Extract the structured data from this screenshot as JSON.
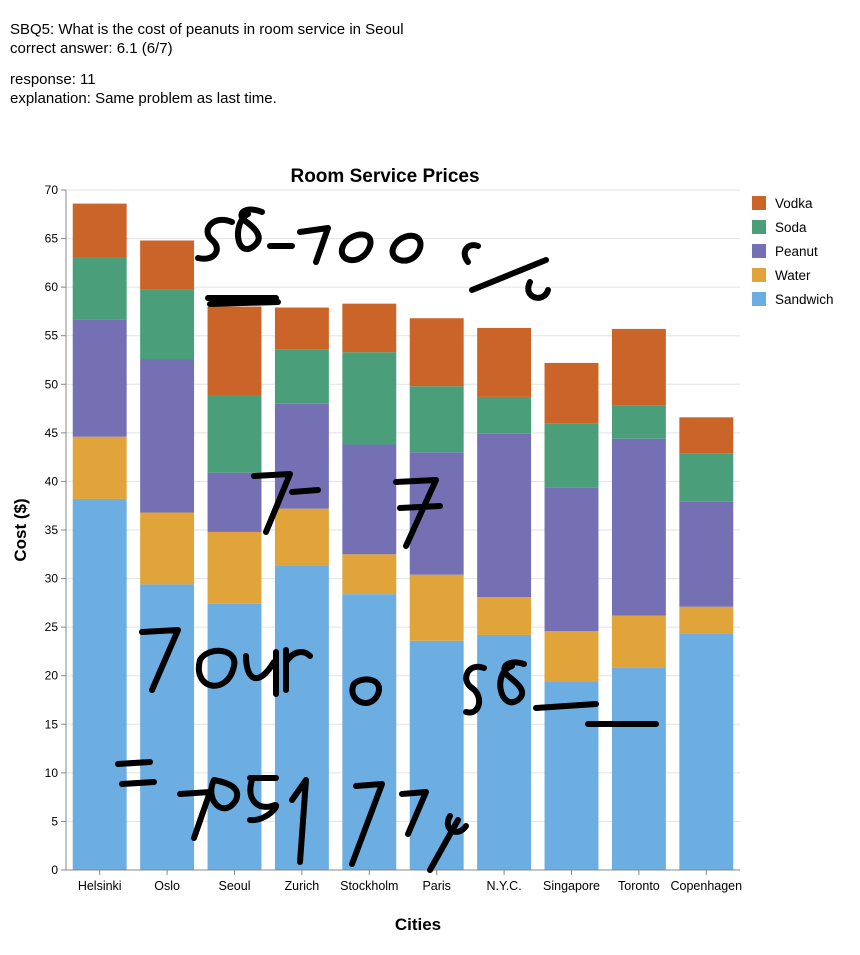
{
  "header": {
    "question": "SBQ5: What is the cost of peanuts in room service in Seoul",
    "correct_answer": "correct answer: 6.1 (6/7)",
    "response": "response: 11",
    "explanation": "explanation: Same problem as last time."
  },
  "chart_data": {
    "type": "bar",
    "stacked": true,
    "title": "Room Service Prices",
    "xlabel": "Cities",
    "ylabel": "Cost ($)",
    "ylim": [
      0,
      70
    ],
    "yticks": [
      0,
      5,
      10,
      15,
      20,
      25,
      30,
      35,
      40,
      45,
      50,
      55,
      60,
      65,
      70
    ],
    "grid": true,
    "legend_position": "top-right",
    "categories": [
      "Helsinki",
      "Oslo",
      "Seoul",
      "Zurich",
      "Stockholm",
      "Paris",
      "N.Y.C.",
      "Singapore",
      "Toronto",
      "Copenhagen"
    ],
    "series": [
      {
        "name": "Sandwich",
        "color": "#6caee2",
        "values": [
          38.2,
          29.4,
          27.4,
          31.3,
          28.4,
          23.6,
          24.2,
          19.4,
          20.8,
          24.3
        ]
      },
      {
        "name": "Water",
        "color": "#e0a43a",
        "values": [
          6.4,
          7.4,
          7.4,
          5.9,
          4.1,
          6.8,
          3.9,
          5.2,
          5.4,
          2.8
        ]
      },
      {
        "name": "Peanut",
        "color": "#7570b3",
        "values": [
          12.1,
          15.8,
          6.1,
          10.8,
          11.3,
          12.6,
          16.8,
          14.8,
          18.2,
          10.8
        ]
      },
      {
        "name": "Soda",
        "color": "#4a9f7a",
        "values": [
          6.4,
          7.2,
          7.9,
          5.6,
          9.5,
          6.8,
          3.8,
          6.6,
          3.4,
          5.0
        ]
      },
      {
        "name": "Vodka",
        "color": "#cb6428",
        "values": [
          5.5,
          5.0,
          9.2,
          4.3,
          5.0,
          7.0,
          7.1,
          6.2,
          7.9,
          3.7
        ]
      }
    ],
    "legend_order": [
      "Vodka",
      "Soda",
      "Peanut",
      "Water",
      "Sandwich"
    ]
  }
}
